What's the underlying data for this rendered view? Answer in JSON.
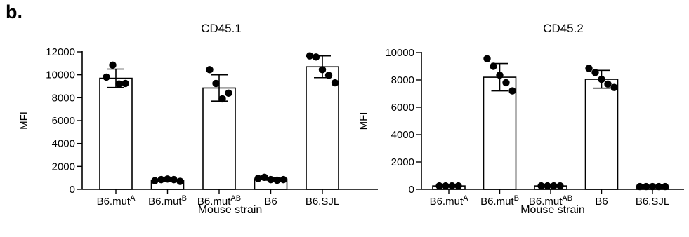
{
  "figure": {
    "panel_label": "b."
  },
  "chart_data": [
    {
      "type": "bar",
      "title": "CD45.1",
      "xlabel": "Mouse strain",
      "ylabel": "MFI",
      "ylim": [
        0,
        12000
      ],
      "yticks": [
        0,
        2000,
        4000,
        6000,
        8000,
        10000,
        12000
      ],
      "ytick_labels": [
        "0",
        "2000",
        "4000",
        "6000",
        "8000",
        "10000",
        "12000"
      ],
      "categories": [
        {
          "base": "B6.mut",
          "sup": "A"
        },
        {
          "base": "B6.mut",
          "sup": "B"
        },
        {
          "base": "B6.mut",
          "sup": "AB"
        },
        {
          "base": "B6",
          "sup": ""
        },
        {
          "base": "B6.SJL",
          "sup": ""
        }
      ],
      "values": [
        9700,
        800,
        8850,
        900,
        10700
      ],
      "error": [
        800,
        100,
        1150,
        100,
        950
      ],
      "points": [
        [
          9800,
          10850,
          9200,
          9250
        ],
        [
          750,
          850,
          900,
          850,
          700
        ],
        [
          10450,
          9250,
          7900,
          8400
        ],
        [
          950,
          1050,
          850,
          800,
          850
        ],
        [
          11650,
          11550,
          10450,
          9950,
          9300
        ]
      ]
    },
    {
      "type": "bar",
      "title": "CD45.2",
      "xlabel": "Mouse strain",
      "ylabel": "MFI",
      "ylim": [
        0,
        10000
      ],
      "yticks": [
        0,
        2000,
        4000,
        6000,
        8000,
        10000
      ],
      "ytick_labels": [
        "0",
        "2000",
        "4000",
        "6000",
        "8000",
        "10000"
      ],
      "categories": [
        {
          "base": "B6.mut",
          "sup": "A"
        },
        {
          "base": "B6.mut",
          "sup": "B"
        },
        {
          "base": "B6.mut",
          "sup": "AB"
        },
        {
          "base": "B6",
          "sup": ""
        },
        {
          "base": "B6.SJL",
          "sup": ""
        }
      ],
      "values": [
        250,
        8200,
        250,
        8050,
        200
      ],
      "error": [
        40,
        1000,
        40,
        650,
        30
      ],
      "points": [
        [
          250,
          250,
          250,
          250
        ],
        [
          9550,
          9000,
          8350,
          7800,
          7200
        ],
        [
          250,
          250,
          250,
          250
        ],
        [
          8850,
          8550,
          8050,
          7700,
          7450
        ],
        [
          200,
          200,
          200,
          200,
          200
        ]
      ]
    }
  ]
}
